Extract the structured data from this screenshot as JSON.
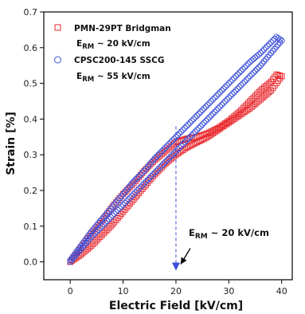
{
  "chart_data": {
    "type": "scatter",
    "xlabel": "Electric Field [kV/cm]",
    "ylabel": "Strain [%]",
    "xlim": [
      -5,
      42
    ],
    "ylim": [
      -0.05,
      0.7
    ],
    "x_ticks": [
      "0",
      "10",
      "20",
      "30",
      "40"
    ],
    "y_ticks": [
      "0.0",
      "0.1",
      "0.2",
      "0.3",
      "0.4",
      "0.5",
      "0.6",
      "0.7"
    ],
    "grid": false,
    "legend_position": "top-left",
    "series": [
      {
        "name": "PMN-29PT Bridgman",
        "note_main": "E",
        "note_sub": "RM",
        "note_rest": " ~ 20 kV/cm",
        "color": "#e8262b",
        "marker": "square",
        "up_branch": [
          [
            0,
            0.0
          ],
          [
            2,
            0.02
          ],
          [
            4,
            0.045
          ],
          [
            6,
            0.075
          ],
          [
            8,
            0.105
          ],
          [
            10,
            0.14
          ],
          [
            12,
            0.175
          ],
          [
            14,
            0.21
          ],
          [
            16,
            0.245
          ],
          [
            18,
            0.275
          ],
          [
            20,
            0.3
          ],
          [
            22,
            0.32
          ],
          [
            24,
            0.335
          ],
          [
            26,
            0.35
          ],
          [
            28,
            0.37
          ],
          [
            30,
            0.39
          ],
          [
            32,
            0.41
          ],
          [
            34,
            0.43
          ],
          [
            36,
            0.455
          ],
          [
            38,
            0.48
          ],
          [
            39,
            0.5
          ],
          [
            40,
            0.52
          ]
        ],
        "down_branch": [
          [
            40,
            0.52
          ],
          [
            39,
            0.525
          ],
          [
            38,
            0.505
          ],
          [
            36,
            0.48
          ],
          [
            34,
            0.45
          ],
          [
            32,
            0.42
          ],
          [
            30,
            0.395
          ],
          [
            28,
            0.375
          ],
          [
            26,
            0.36
          ],
          [
            24,
            0.35
          ],
          [
            22,
            0.345
          ],
          [
            20,
            0.335
          ],
          [
            18,
            0.31
          ],
          [
            16,
            0.285
          ],
          [
            14,
            0.255
          ],
          [
            12,
            0.22
          ],
          [
            10,
            0.19
          ],
          [
            8,
            0.155
          ],
          [
            6,
            0.115
          ],
          [
            4,
            0.08
          ],
          [
            2,
            0.04
          ],
          [
            0,
            0.0
          ]
        ]
      },
      {
        "name": "CPSC200-145 SSCG",
        "note_main": "E",
        "note_sub": "RM",
        "note_rest": " ~ 55 kV/cm",
        "color": "#3b4fd8",
        "marker": "circle",
        "up_branch": [
          [
            0,
            0.0
          ],
          [
            2,
            0.035
          ],
          [
            4,
            0.07
          ],
          [
            6,
            0.1
          ],
          [
            8,
            0.13
          ],
          [
            10,
            0.16
          ],
          [
            12,
            0.19
          ],
          [
            14,
            0.22
          ],
          [
            16,
            0.25
          ],
          [
            18,
            0.28
          ],
          [
            20,
            0.31
          ],
          [
            22,
            0.34
          ],
          [
            24,
            0.37
          ],
          [
            26,
            0.4
          ],
          [
            28,
            0.43
          ],
          [
            30,
            0.46
          ],
          [
            32,
            0.49
          ],
          [
            34,
            0.52
          ],
          [
            36,
            0.55
          ],
          [
            38,
            0.585
          ],
          [
            40,
            0.62
          ]
        ],
        "down_branch": [
          [
            40,
            0.62
          ],
          [
            39,
            0.63
          ],
          [
            38,
            0.615
          ],
          [
            36,
            0.585
          ],
          [
            34,
            0.56
          ],
          [
            32,
            0.53
          ],
          [
            30,
            0.5
          ],
          [
            28,
            0.47
          ],
          [
            26,
            0.44
          ],
          [
            24,
            0.41
          ],
          [
            22,
            0.38
          ],
          [
            20,
            0.35
          ],
          [
            18,
            0.32
          ],
          [
            16,
            0.29
          ],
          [
            14,
            0.255
          ],
          [
            12,
            0.225
          ],
          [
            10,
            0.19
          ],
          [
            8,
            0.155
          ],
          [
            6,
            0.12
          ],
          [
            4,
            0.085
          ],
          [
            2,
            0.045
          ],
          [
            0,
            0.005
          ]
        ]
      }
    ],
    "annotation": {
      "main": "E",
      "sub": "RM",
      "rest": " ~ 20 kV/cm",
      "x": 20,
      "y_from": 0.38,
      "y_to": -0.02,
      "color": "#3b4fd8"
    }
  }
}
